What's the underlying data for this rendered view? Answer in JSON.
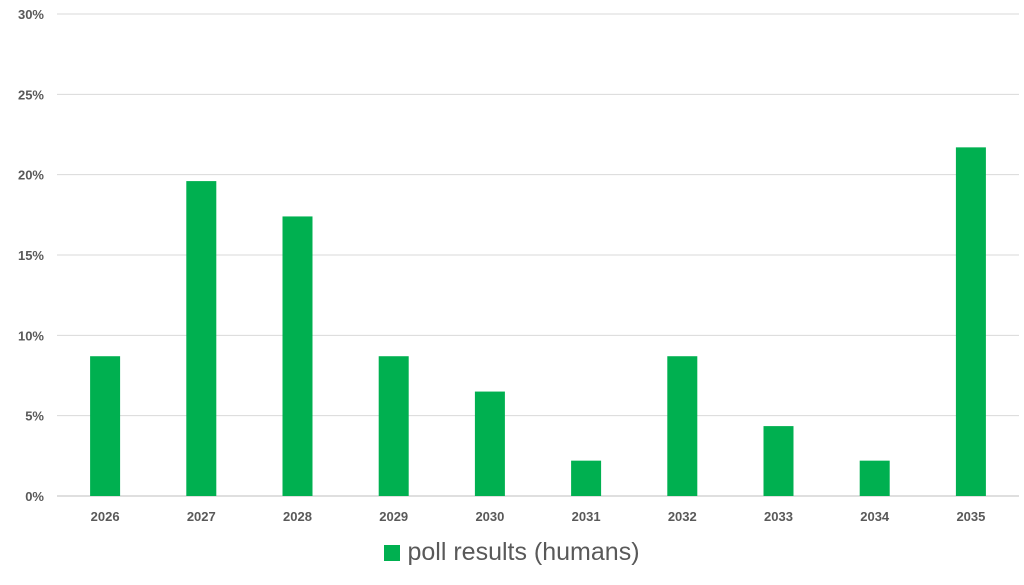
{
  "chart_data": {
    "type": "bar",
    "categories": [
      "2026",
      "2027",
      "2028",
      "2029",
      "2030",
      "2031",
      "2032",
      "2033",
      "2034",
      "2035"
    ],
    "series": [
      {
        "name": "poll results (humans)",
        "values": [
          8.7,
          19.6,
          17.4,
          8.7,
          6.5,
          2.2,
          8.7,
          4.35,
          2.2,
          21.7
        ],
        "color": "#00b050"
      }
    ],
    "title": "",
    "xlabel": "",
    "ylabel": "",
    "ylim": [
      0,
      30
    ],
    "yticks": [
      0,
      5,
      10,
      15,
      20,
      25,
      30
    ],
    "ytick_format": "%",
    "grid": true,
    "legend_position": "bottom"
  }
}
